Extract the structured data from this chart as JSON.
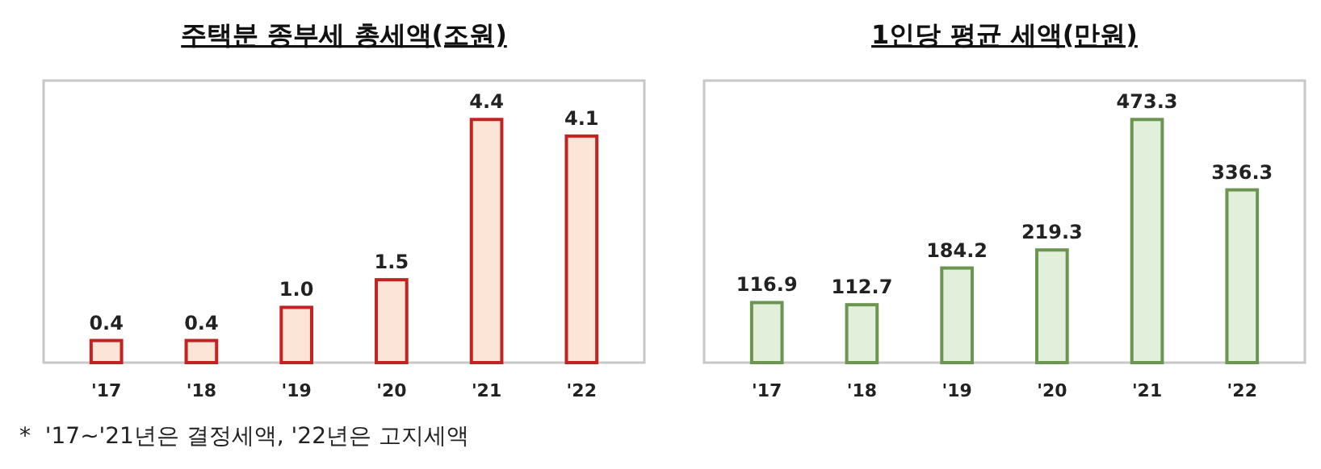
{
  "chart_data": [
    {
      "type": "bar",
      "title": "주택분 종부세 총세액(조원)",
      "categories": [
        "'17",
        "'18",
        "'19",
        "'20",
        "'21",
        "'22"
      ],
      "values": [
        0.4,
        0.4,
        1.0,
        1.5,
        4.4,
        4.1
      ],
      "value_labels": [
        "0.4",
        "0.4",
        "1.0",
        "1.5",
        "4.4",
        "4.1"
      ],
      "color": "#fce4d6",
      "annotations": [
        "*  '17~'21년은 결정세액, '22년은 고지세액"
      ]
    },
    {
      "type": "bar",
      "title": "1인당 평균 세액(만원)",
      "categories": [
        "'17",
        "'18",
        "'19",
        "'20",
        "'21",
        "'22"
      ],
      "values": [
        116.9,
        112.7,
        184.2,
        219.3,
        473.3,
        336.3
      ],
      "value_labels": [
        "116.9",
        "112.7",
        "184.2",
        "219.3",
        "473.3",
        "336.3"
      ],
      "color": "#e2efda"
    }
  ]
}
